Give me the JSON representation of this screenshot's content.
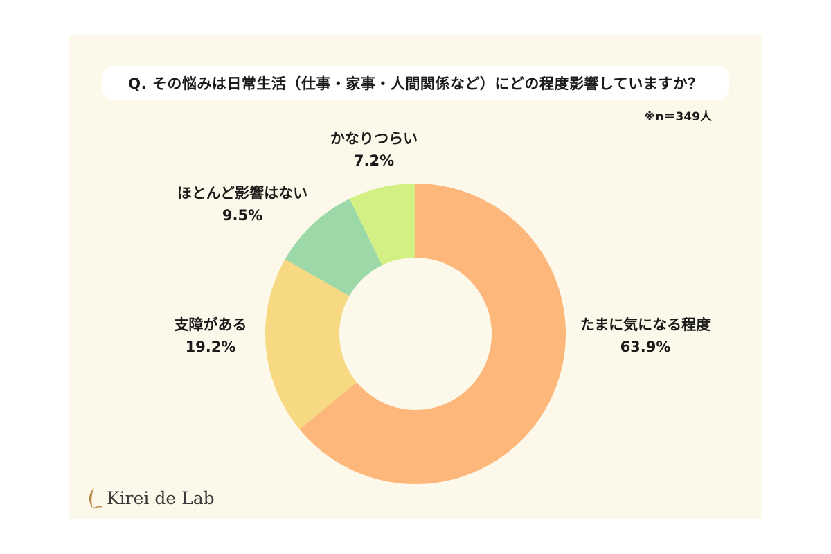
{
  "question": "Q. その悩みは日常生活（仕事・家事・人間関係など）にどの程度影響していますか？",
  "sample_size": "※n＝349人",
  "brand": "Kirei de Lab",
  "chart_data": {
    "type": "pie",
    "donut": true,
    "slices": [
      {
        "label": "たまに気になる程度",
        "value": 63.9,
        "value_label": "63.9%",
        "color": "#fdb77a"
      },
      {
        "label": "支障がある",
        "value": 19.2,
        "value_label": "19.2%",
        "color": "#f7d983"
      },
      {
        "label": "ほとんど影響はない",
        "value": 9.5,
        "value_label": "9.5%",
        "color": "#9dd9a8"
      },
      {
        "label": "かなりつらい",
        "value": 7.2,
        "value_label": "7.2%",
        "color": "#d2f083"
      }
    ]
  }
}
